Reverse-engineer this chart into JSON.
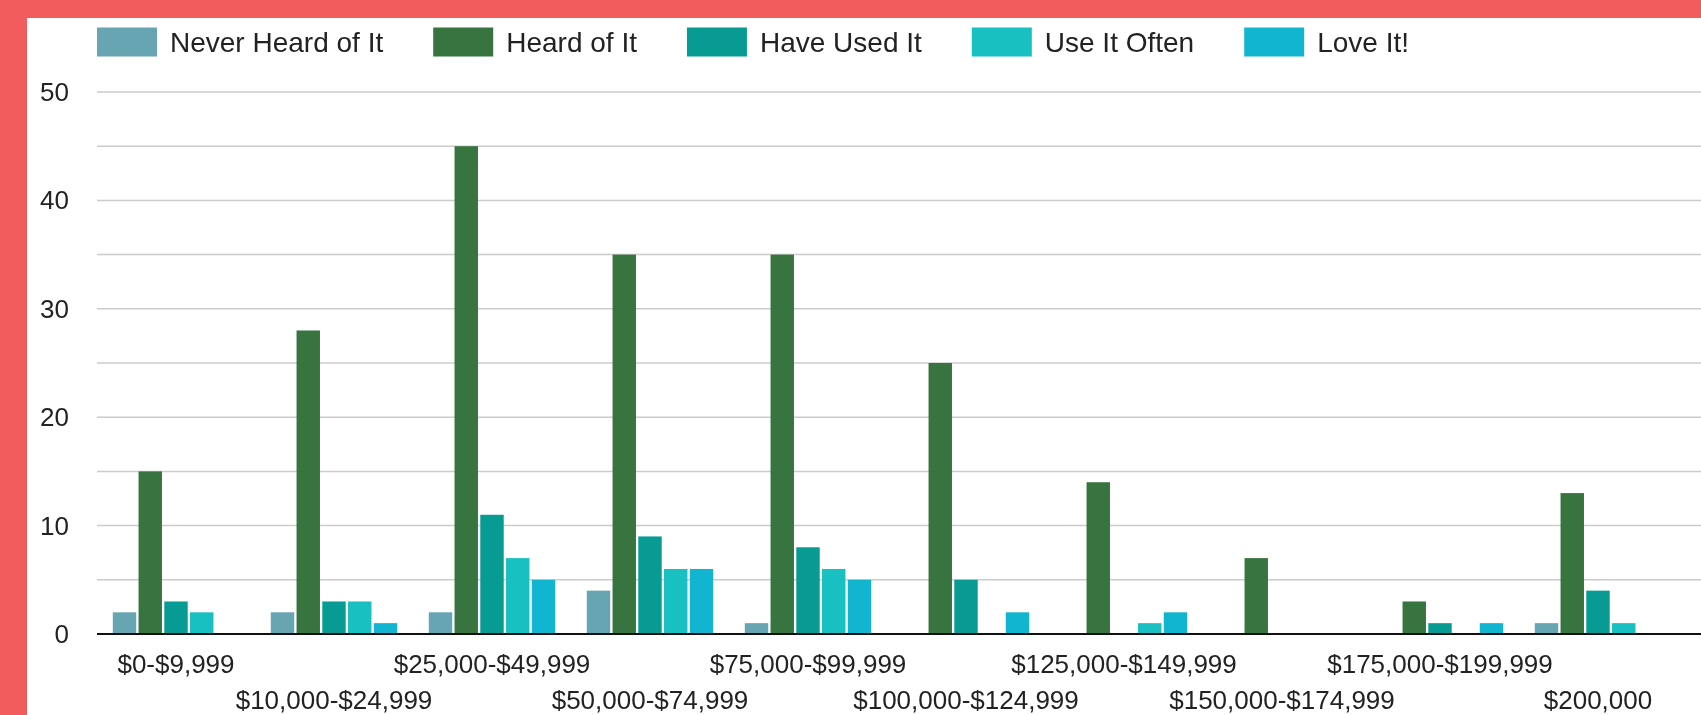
{
  "chart_data": {
    "type": "bar",
    "categories": [
      "$0-$9,999",
      "$10,000-$24,999",
      "$25,000-$49,999",
      "$50,000-$74,999",
      "$75,000-$99,999",
      "$100,000-$124,999",
      "$125,000-$149,999",
      "$150,000-$174,999",
      "$175,000-$199,999",
      "$200,000"
    ],
    "series": [
      {
        "name": "Never Heard of It",
        "color": "#66a5b1",
        "values": [
          2,
          2,
          2,
          4,
          1,
          0,
          0,
          0,
          0,
          1
        ]
      },
      {
        "name": "Heard of It",
        "color": "#387440",
        "values": [
          15,
          28,
          45,
          35,
          35,
          25,
          14,
          7,
          3,
          13
        ]
      },
      {
        "name": "Have Used It",
        "color": "#079b94",
        "values": [
          3,
          3,
          11,
          9,
          8,
          5,
          0,
          0,
          1,
          4
        ]
      },
      {
        "name": "Use It Often",
        "color": "#18c0c2",
        "values": [
          2,
          3,
          7,
          6,
          6,
          0,
          1,
          0,
          0,
          1
        ]
      },
      {
        "name": "Love It!",
        "color": "#12b5d0",
        "values": [
          0,
          1,
          5,
          6,
          5,
          2,
          2,
          0,
          1,
          null
        ]
      }
    ],
    "ylim": [
      0,
      50
    ],
    "yticks": [
      0,
      {
        "value": 5,
        "label": null
      },
      10,
      {
        "value": 15,
        "label": null
      },
      20,
      {
        "value": 25,
        "label": null
      },
      30,
      {
        "value": 35,
        "label": null
      },
      40,
      {
        "value": 45,
        "label": null
      },
      50
    ],
    "grid": "y",
    "legend": "top"
  }
}
